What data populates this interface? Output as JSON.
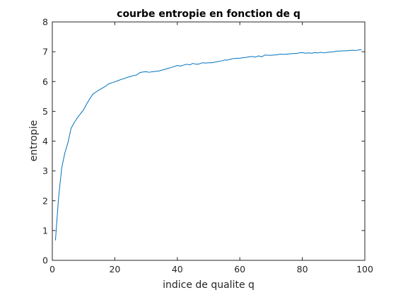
{
  "chart_data": {
    "type": "line",
    "title": "courbe entropie en fonction de q",
    "xlabel": "indice de qualite q",
    "ylabel": "entropie",
    "xlim": [
      0,
      100
    ],
    "ylim": [
      0,
      8
    ],
    "xticks": [
      0,
      20,
      40,
      60,
      80,
      100
    ],
    "yticks": [
      0,
      1,
      2,
      3,
      4,
      5,
      6,
      7,
      8
    ],
    "grid": false,
    "series": [
      {
        "color": "#0072bd",
        "x": [
          1,
          2,
          3,
          4,
          5,
          6,
          7,
          8,
          9,
          10,
          11,
          12,
          13,
          14,
          15,
          16,
          17,
          18,
          19,
          20,
          21,
          22,
          23,
          24,
          25,
          26,
          27,
          28,
          29,
          30,
          31,
          32,
          33,
          34,
          35,
          36,
          37,
          38,
          39,
          40,
          41,
          42,
          43,
          44,
          45,
          46,
          47,
          48,
          49,
          50,
          51,
          52,
          53,
          54,
          55,
          56,
          57,
          58,
          59,
          60,
          61,
          62,
          63,
          64,
          65,
          66,
          67,
          68,
          69,
          70,
          71,
          72,
          73,
          74,
          75,
          76,
          77,
          78,
          79,
          80,
          81,
          82,
          83,
          84,
          85,
          86,
          87,
          88,
          89,
          90,
          91,
          92,
          93,
          94,
          95,
          96,
          97,
          98,
          99
        ],
        "y": [
          0.67,
          2.1,
          3.1,
          3.6,
          3.95,
          4.43,
          4.62,
          4.78,
          4.92,
          5.05,
          5.25,
          5.42,
          5.58,
          5.65,
          5.72,
          5.78,
          5.84,
          5.92,
          5.96,
          5.99,
          6.03,
          6.07,
          6.1,
          6.14,
          6.17,
          6.2,
          6.22,
          6.3,
          6.32,
          6.33,
          6.31,
          6.33,
          6.34,
          6.35,
          6.38,
          6.41,
          6.44,
          6.47,
          6.5,
          6.54,
          6.52,
          6.55,
          6.58,
          6.56,
          6.61,
          6.58,
          6.59,
          6.63,
          6.62,
          6.63,
          6.63,
          6.65,
          6.67,
          6.69,
          6.72,
          6.72,
          6.75,
          6.77,
          6.78,
          6.78,
          6.8,
          6.81,
          6.83,
          6.84,
          6.82,
          6.86,
          6.83,
          6.89,
          6.88,
          6.88,
          6.89,
          6.9,
          6.92,
          6.91,
          6.92,
          6.93,
          6.94,
          6.94,
          6.96,
          6.97,
          6.95,
          6.96,
          6.95,
          6.97,
          6.96,
          6.98,
          6.96,
          6.98,
          6.99,
          7.0,
          7.02,
          7.02,
          7.03,
          7.03,
          7.04,
          7.05,
          7.04,
          7.06,
          7.07
        ]
      }
    ]
  }
}
